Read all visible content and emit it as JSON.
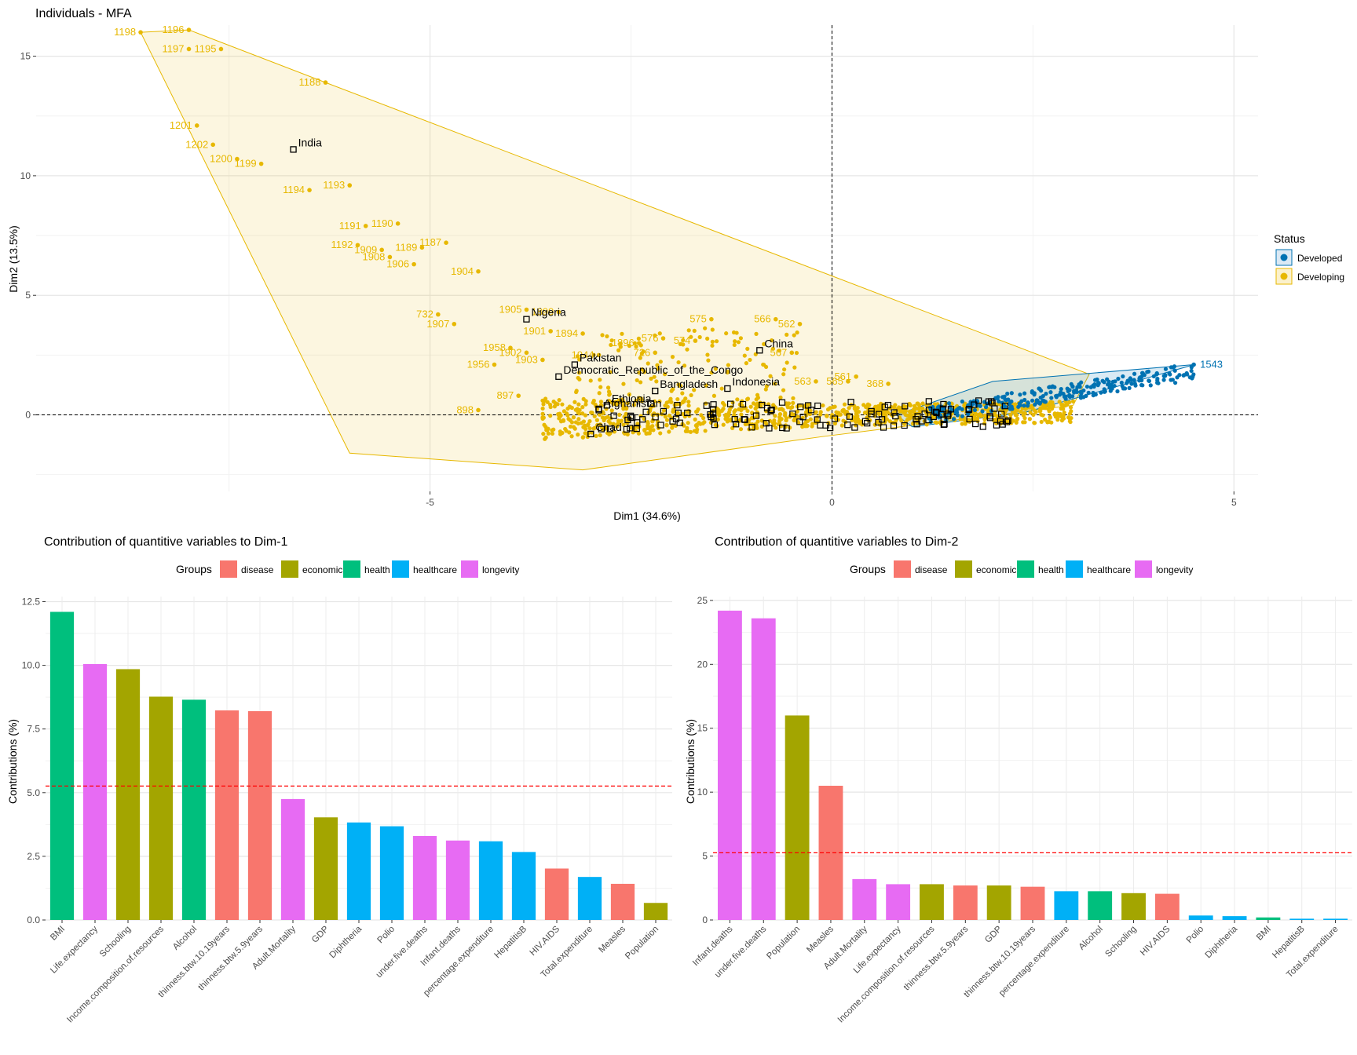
{
  "chart_data": [
    {
      "type": "scatter",
      "title": "Individuals - MFA",
      "xlabel": "Dim1 (34.6%)",
      "ylabel": "Dim2 (13.5%)",
      "xlim": [
        -9.9,
        5.3
      ],
      "ylim": [
        -3.2,
        16.3
      ],
      "xticks": [
        -5,
        0,
        5
      ],
      "yticks": [
        0,
        5,
        10,
        15
      ],
      "grid": true,
      "reference_lines": {
        "x": 0,
        "y": 0,
        "style": "dashed"
      },
      "legend": {
        "title": "Status",
        "position": "right",
        "items": [
          {
            "name": "Developed",
            "color": "#0072B2"
          },
          {
            "name": "Developing",
            "color": "#E7B800"
          }
        ]
      },
      "series": [
        {
          "name": "Developing",
          "color": "#E7B800",
          "hull": [
            [
              -8.6,
              16.0
            ],
            [
              -8.0,
              16.1
            ],
            [
              -6.3,
              13.9
            ],
            [
              3.2,
              1.7
            ],
            [
              3.0,
              0.4
            ],
            [
              -0.1,
              -0.9
            ],
            [
              -3.1,
              -2.3
            ],
            [
              -6.0,
              -1.6
            ]
          ],
          "labeled_points": [
            {
              "label": "1198",
              "x": -8.6,
              "y": 16.0
            },
            {
              "label": "1196",
              "x": -8.0,
              "y": 16.1
            },
            {
              "label": "1197",
              "x": -8.0,
              "y": 15.3
            },
            {
              "label": "1195",
              "x": -7.6,
              "y": 15.3
            },
            {
              "label": "1188",
              "x": -6.3,
              "y": 13.9
            },
            {
              "label": "1201",
              "x": -7.9,
              "y": 12.1
            },
            {
              "label": "1202",
              "x": -7.7,
              "y": 11.3
            },
            {
              "label": "1200",
              "x": -7.4,
              "y": 10.7
            },
            {
              "label": "1199",
              "x": -7.1,
              "y": 10.5
            },
            {
              "label": "1194",
              "x": -6.5,
              "y": 9.4
            },
            {
              "label": "1193",
              "x": -6.0,
              "y": 9.6
            },
            {
              "label": "1191",
              "x": -5.8,
              "y": 7.9
            },
            {
              "label": "1190",
              "x": -5.4,
              "y": 8.0
            },
            {
              "label": "1192",
              "x": -5.9,
              "y": 7.1
            },
            {
              "label": "1189",
              "x": -5.1,
              "y": 7.0
            },
            {
              "label": "1187",
              "x": -4.8,
              "y": 7.2
            },
            {
              "label": "1909",
              "x": -5.6,
              "y": 6.9
            },
            {
              "label": "1908",
              "x": -5.5,
              "y": 6.6
            },
            {
              "label": "1906",
              "x": -5.2,
              "y": 6.3
            },
            {
              "label": "1904",
              "x": -4.4,
              "y": 6.0
            },
            {
              "label": "732",
              "x": -4.9,
              "y": 4.2
            },
            {
              "label": "1907",
              "x": -4.7,
              "y": 3.8
            },
            {
              "label": "1905",
              "x": -3.8,
              "y": 4.4
            },
            {
              "label": "1899",
              "x": -3.4,
              "y": 4.3
            },
            {
              "label": "1901",
              "x": -3.5,
              "y": 3.5
            },
            {
              "label": "1894",
              "x": -3.1,
              "y": 3.4
            },
            {
              "label": "1958",
              "x": -4.0,
              "y": 2.8
            },
            {
              "label": "1902",
              "x": -3.8,
              "y": 2.6
            },
            {
              "label": "1944",
              "x": -2.9,
              "y": 2.5
            },
            {
              "label": "1903",
              "x": -3.6,
              "y": 2.3
            },
            {
              "label": "1956",
              "x": -4.2,
              "y": 2.1
            },
            {
              "label": "897",
              "x": -3.9,
              "y": 0.8
            },
            {
              "label": "898",
              "x": -4.4,
              "y": 0.2
            },
            {
              "label": "1896",
              "x": -2.4,
              "y": 3.0
            },
            {
              "label": "576",
              "x": -2.1,
              "y": 3.2
            },
            {
              "label": "726",
              "x": -2.2,
              "y": 2.6
            },
            {
              "label": "575",
              "x": -1.5,
              "y": 4.0
            },
            {
              "label": "574",
              "x": -1.7,
              "y": 3.1
            },
            {
              "label": "566",
              "x": -0.7,
              "y": 4.0
            },
            {
              "label": "562",
              "x": -0.4,
              "y": 3.8
            },
            {
              "label": "567",
              "x": -0.5,
              "y": 2.6
            },
            {
              "label": "563",
              "x": -0.2,
              "y": 1.4
            },
            {
              "label": "561",
              "x": 0.3,
              "y": 1.6
            },
            {
              "label": "565",
              "x": 0.2,
              "y": 1.4
            },
            {
              "label": "368",
              "x": 0.7,
              "y": 1.3
            }
          ]
        },
        {
          "name": "Developed",
          "color": "#0072B2",
          "hull": [
            [
              0.8,
              0.0
            ],
            [
              2.0,
              1.4
            ],
            [
              4.5,
              2.1
            ],
            [
              4.4,
              2.0
            ],
            [
              2.4,
              0.1
            ],
            [
              1.0,
              -0.5
            ]
          ],
          "labeled_points": [
            {
              "label": "1543",
              "x": 4.5,
              "y": 2.1
            }
          ]
        }
      ],
      "supplementary_points": [
        {
          "label": "India",
          "x": -6.7,
          "y": 11.1
        },
        {
          "label": "Nigeria",
          "x": -3.8,
          "y": 4.0
        },
        {
          "label": "Pakistan",
          "x": -3.2,
          "y": 2.1
        },
        {
          "label": "Democratic_Republic_of_the_Congo",
          "x": -3.4,
          "y": 1.6
        },
        {
          "label": "China",
          "x": -0.9,
          "y": 2.7
        },
        {
          "label": "Bangladesh",
          "x": -2.2,
          "y": 1.0
        },
        {
          "label": "Indonesia",
          "x": -1.3,
          "y": 1.1
        },
        {
          "label": "Ethiopia",
          "x": -2.8,
          "y": 0.4
        },
        {
          "label": "Afghanistan",
          "x": -2.9,
          "y": 0.2
        },
        {
          "label": "Chad",
          "x": -3.0,
          "y": -0.8
        }
      ]
    },
    {
      "type": "bar",
      "title": "Contribution of quantitive variables to Dim-1",
      "xlabel": "",
      "ylabel": "Contributions (%)",
      "ylim": [
        0,
        12.7
      ],
      "yticks": [
        "0.0",
        "2.5",
        "5.0",
        "7.5",
        "10.0",
        "12.5"
      ],
      "reference_line": 5.26,
      "legend": {
        "title": "Groups",
        "position": "top",
        "items": [
          "disease",
          "economic",
          "health",
          "healthcare",
          "longevity"
        ]
      },
      "categories": [
        "BMI",
        "Life.expectancy",
        "Schooling",
        "Income.composition.of.resources",
        "Alcohol",
        "thinness.btw.10.19years",
        "thinness.btw.5.9years",
        "Adult.Mortality",
        "GDP",
        "Diphtheria",
        "Polio",
        "under.five.deaths",
        "Infant.deaths",
        "percentage.expenditure",
        "HepatitisB",
        "HIV.AIDS",
        "Total.expenditure",
        "Measles",
        "Population"
      ],
      "values": [
        12.1,
        10.05,
        9.85,
        8.77,
        8.65,
        8.23,
        8.2,
        4.75,
        4.03,
        3.83,
        3.68,
        3.3,
        3.12,
        3.09,
        2.67,
        2.02,
        1.69,
        1.42,
        0.67
      ],
      "groups": [
        "health",
        "longevity",
        "economic",
        "economic",
        "health",
        "disease",
        "disease",
        "longevity",
        "economic",
        "healthcare",
        "healthcare",
        "longevity",
        "longevity",
        "healthcare",
        "healthcare",
        "disease",
        "healthcare",
        "disease",
        "economic"
      ]
    },
    {
      "type": "bar",
      "title": "Contribution of quantitive variables to Dim-2",
      "xlabel": "",
      "ylabel": "Contributions (%)",
      "ylim": [
        0,
        25.3
      ],
      "yticks": [
        "0",
        "5",
        "10",
        "15",
        "20",
        "25"
      ],
      "reference_line": 5.26,
      "legend": {
        "title": "Groups",
        "position": "top",
        "items": [
          "disease",
          "economic",
          "health",
          "healthcare",
          "longevity"
        ]
      },
      "categories": [
        "Infant.deaths",
        "under.five.deaths",
        "Population",
        "Measles",
        "Adult.Mortality",
        "Life.expectancy",
        "Income.composition.of.resources",
        "thinness.btw.5.9years",
        "GDP",
        "thinness.btw.10.19years",
        "percentage.expenditure",
        "Alcohol",
        "Schooling",
        "HIV.AIDS",
        "Polio",
        "Diphtheria",
        "BMI",
        "HepatitisB",
        "Total.expenditure"
      ],
      "values": [
        24.2,
        23.6,
        16.0,
        10.5,
        3.2,
        2.8,
        2.8,
        2.7,
        2.7,
        2.6,
        2.25,
        2.25,
        2.1,
        2.05,
        0.35,
        0.3,
        0.2,
        0.1,
        0.1
      ],
      "groups": [
        "longevity",
        "longevity",
        "economic",
        "disease",
        "longevity",
        "longevity",
        "economic",
        "disease",
        "economic",
        "disease",
        "healthcare",
        "health",
        "economic",
        "disease",
        "healthcare",
        "healthcare",
        "health",
        "healthcare",
        "healthcare"
      ]
    }
  ],
  "colors": {
    "disease": "#F8766D",
    "economic": "#A3A500",
    "health": "#00BF7D",
    "healthcare": "#00B0F6",
    "longevity": "#E76BF3",
    "developed": "#0072B2",
    "developing": "#E7B800"
  }
}
